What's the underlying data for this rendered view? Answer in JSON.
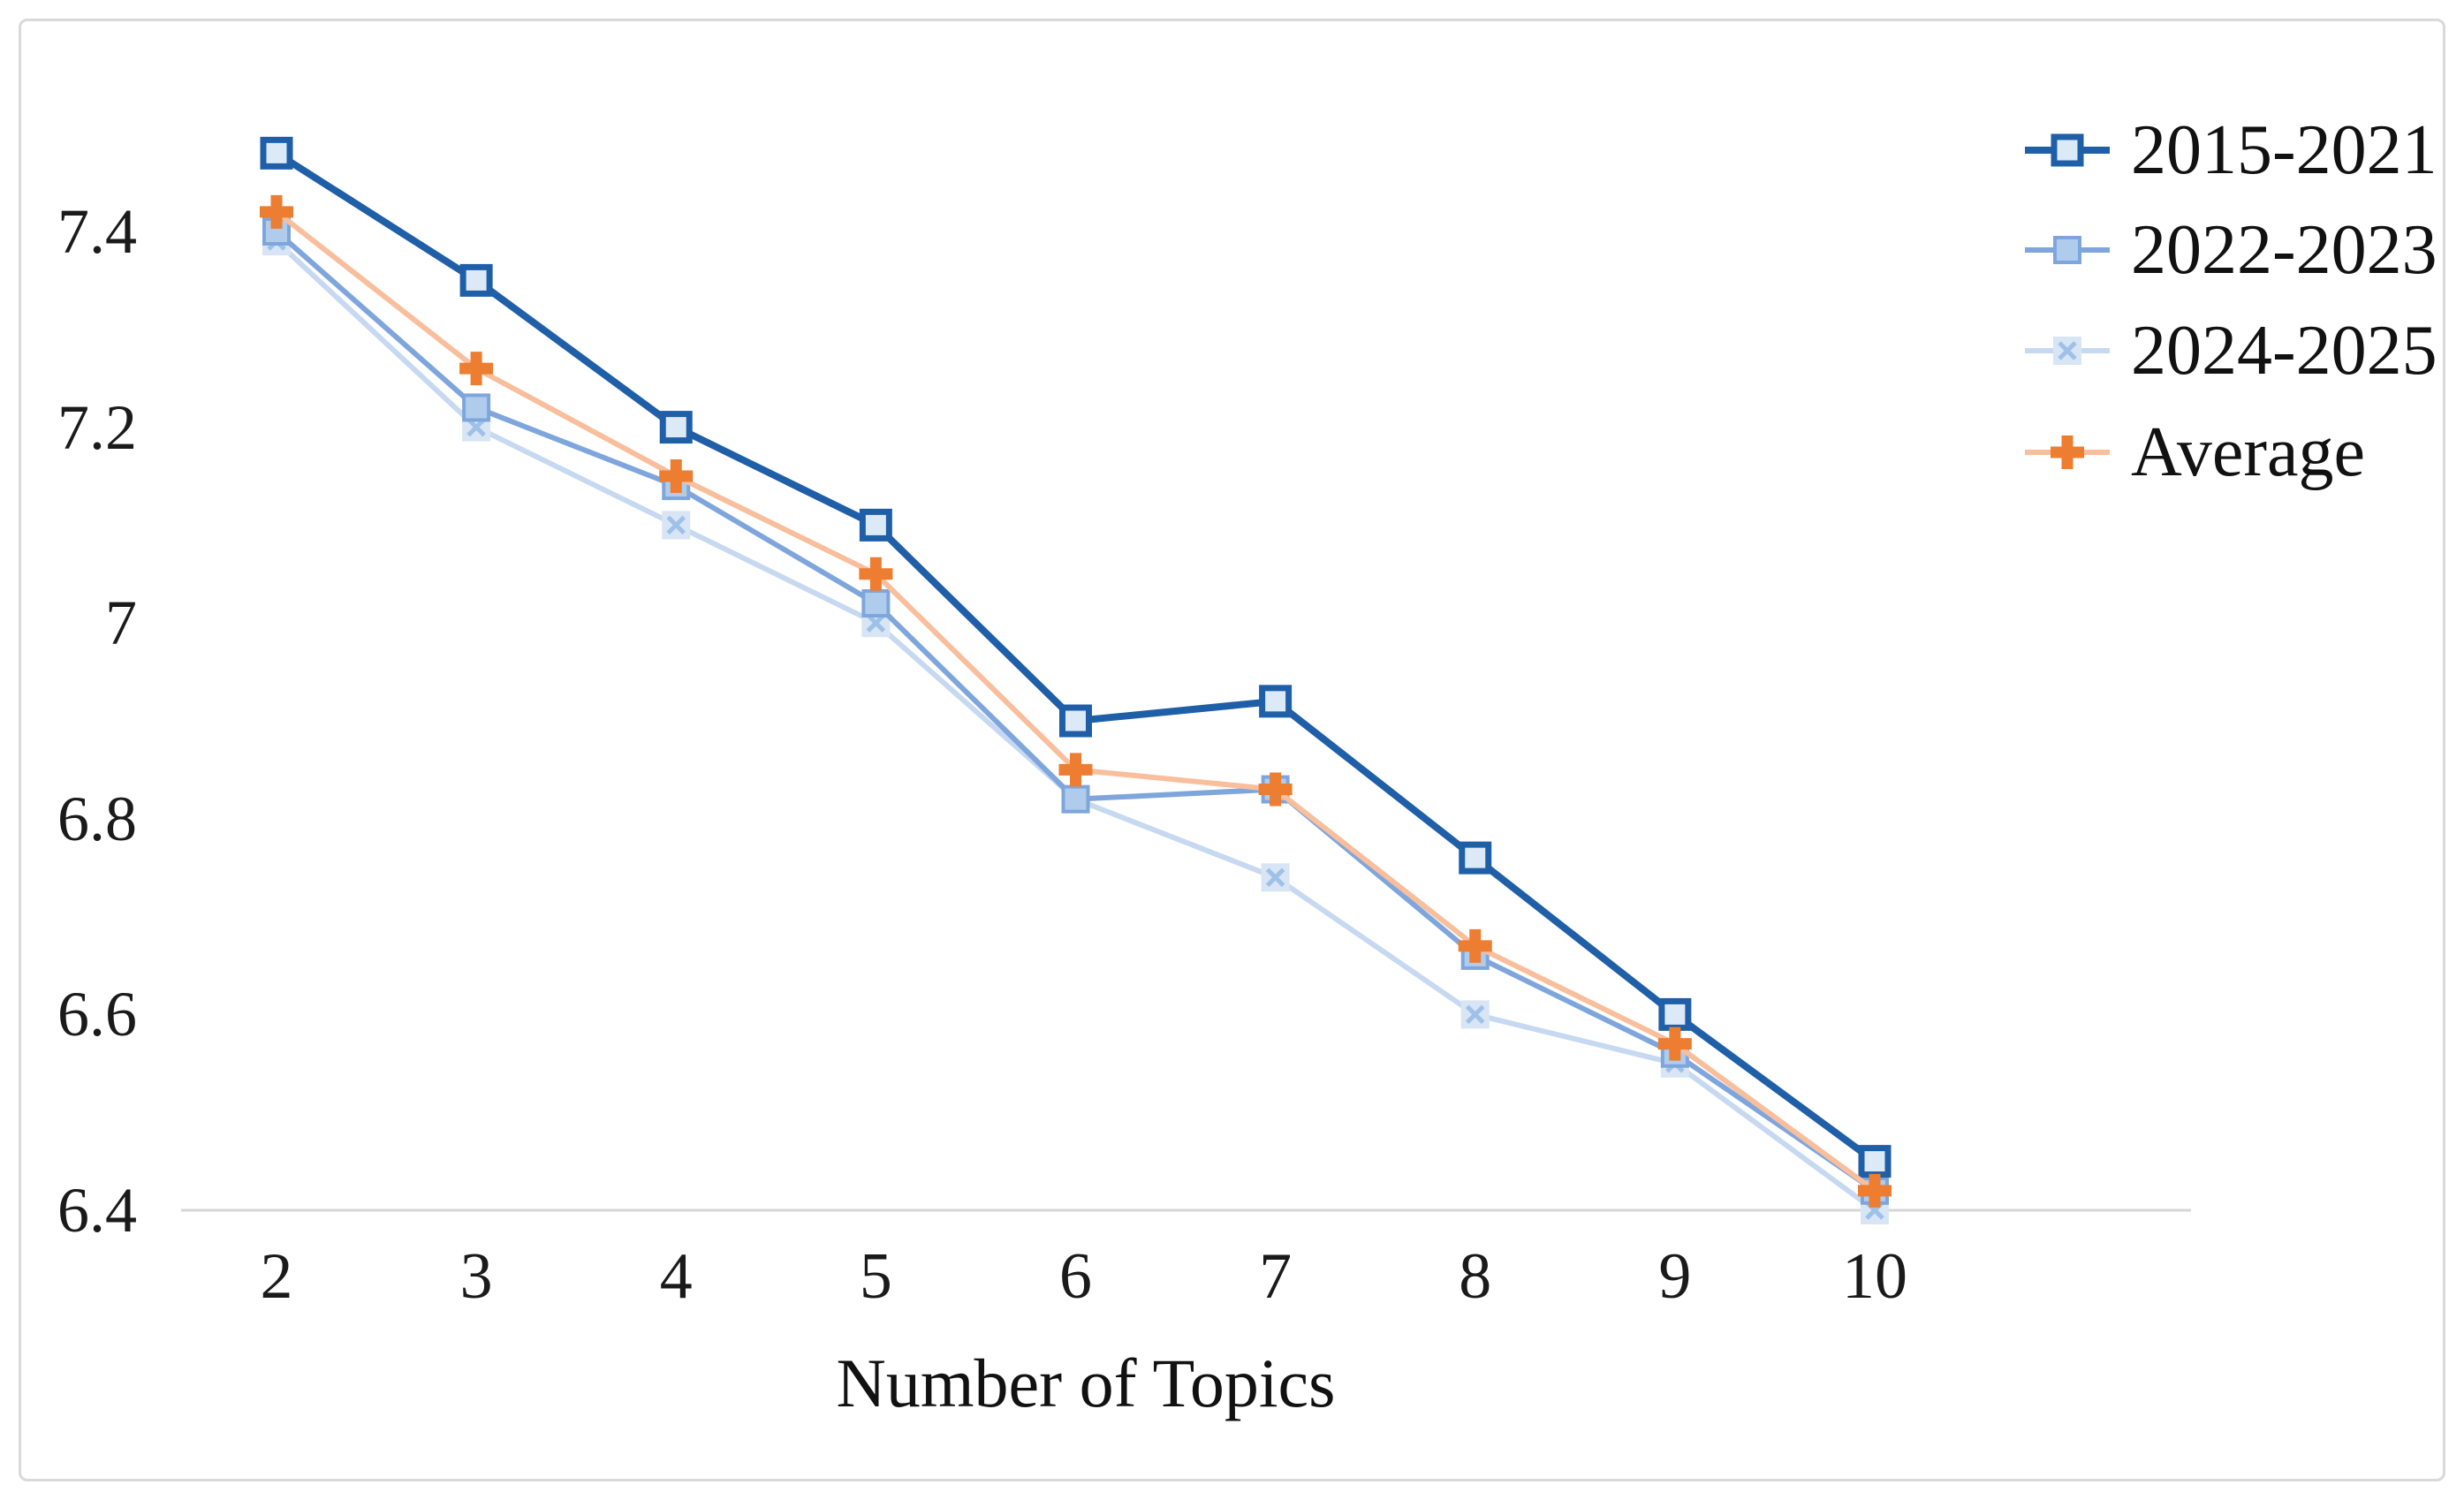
{
  "chart_data": {
    "type": "line",
    "title": "",
    "xlabel": "Number of Topics",
    "ylabel": "",
    "categories": [
      2,
      3,
      4,
      5,
      6,
      7,
      8,
      9,
      10
    ],
    "y_tick_labels": [
      "6.4",
      "6.6",
      "6.8",
      "7",
      "7.2",
      "7.4"
    ],
    "y_tick_values": [
      6.4,
      6.6,
      6.8,
      7.0,
      7.2,
      7.4
    ],
    "ylim": [
      6.4,
      7.55
    ],
    "grid": "off",
    "legend_position": "top-right",
    "baseline_value": 6.4,
    "axis_color": "#d6d6d6",
    "text_color": "#1a1a1a",
    "series": [
      {
        "name": "2015-2021",
        "marker": "open-square",
        "line_color": "#1f5fa8",
        "marker_color": "#1f5fa8",
        "marker_fill": "#dce9f7",
        "line_width": 8,
        "values": [
          7.48,
          7.35,
          7.2,
          7.1,
          6.9,
          6.92,
          6.76,
          6.6,
          6.45
        ]
      },
      {
        "name": "2022-2023",
        "marker": "square",
        "line_color": "#7fa6dc",
        "marker_color": "#7fa6dc",
        "marker_fill": "#afccec",
        "line_width": 6,
        "values": [
          7.4,
          7.22,
          7.14,
          7.02,
          6.82,
          6.83,
          6.66,
          6.56,
          6.42
        ]
      },
      {
        "name": "2024-2025",
        "marker": "x",
        "line_color": "#c6d9f1",
        "marker_color": "#9fc1e8",
        "marker_fill": "#d8e5f5",
        "line_width": 6,
        "values": [
          7.39,
          7.2,
          7.1,
          7.0,
          6.82,
          6.74,
          6.6,
          6.55,
          6.4
        ]
      },
      {
        "name": "Average",
        "marker": "plus",
        "line_color": "#f9be9c",
        "marker_color": "#ed7d31",
        "marker_fill": "#ed7d31",
        "line_width": 6,
        "values": [
          7.42,
          7.26,
          7.15,
          7.05,
          6.85,
          6.83,
          6.67,
          6.57,
          6.42
        ]
      }
    ]
  }
}
